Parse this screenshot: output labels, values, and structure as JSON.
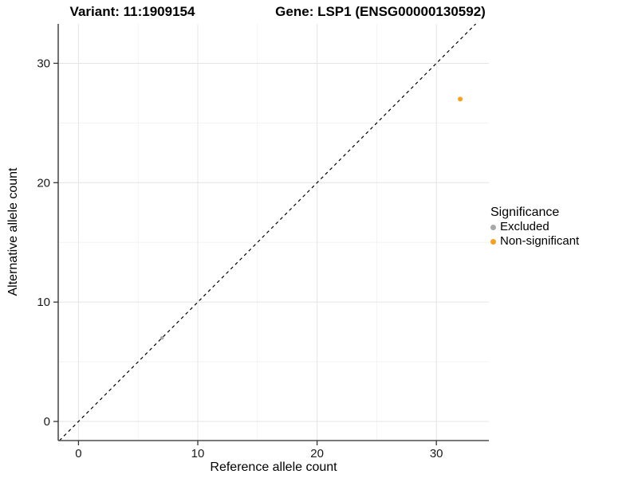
{
  "figure": {
    "title_left": "Variant: 11:1909154",
    "title_right": "Gene: LSP1 (ENSG00000130592)"
  },
  "chart_data": {
    "type": "scatter",
    "title": "Variant: 11:1909154   Gene: LSP1 (ENSG00000130592)",
    "xlabel": "Reference allele count",
    "ylabel": "Alternative allele count",
    "xlim": [
      -1.7,
      34.4
    ],
    "ylim": [
      -1.6,
      33.3
    ],
    "x_ticks": [
      0,
      10,
      20,
      30
    ],
    "y_ticks": [
      0,
      10,
      20,
      30
    ],
    "x_minor_ticks": [
      5,
      15,
      25
    ],
    "y_minor_ticks": [
      5,
      15,
      25
    ],
    "grid": true,
    "reference_line": {
      "slope": 1,
      "intercept": 0,
      "style": "dashed",
      "color": "#000000"
    },
    "legend": {
      "title": "Significance",
      "position": "right"
    },
    "series": [
      {
        "name": "Excluded",
        "color": "#A8A8A8",
        "point_radius": 2.3,
        "points": [
          {
            "x": 7,
            "y": 7
          }
        ]
      },
      {
        "name": "Non-significant",
        "color": "#F9A01E",
        "point_radius": 3,
        "points": [
          {
            "x": 32,
            "y": 27
          }
        ]
      }
    ],
    "colors": {
      "grid_major": "#E4E4E4",
      "grid_minor": "#F3F3F3",
      "axis_line": "#4D4D4D",
      "tick": "#333333",
      "text": "#1A1A1A"
    }
  }
}
